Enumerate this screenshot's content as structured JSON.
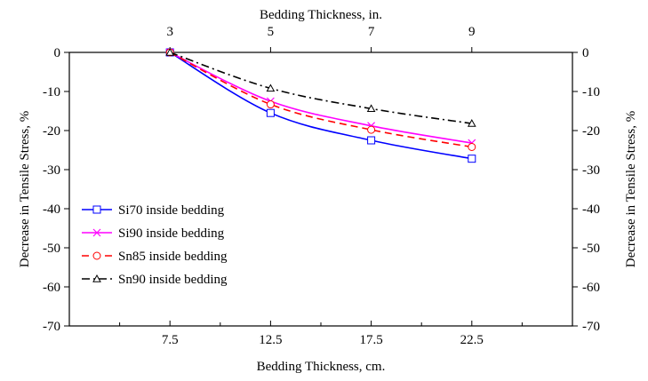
{
  "chart_data": {
    "type": "line",
    "top_xlabel": "Bedding Thickness, in.",
    "top_ticks": [
      "3",
      "5",
      "7",
      "9"
    ],
    "xlabel": "Bedding Thickness, cm.",
    "x_ticks": [
      "7.5",
      "12.5",
      "17.5",
      "22.5"
    ],
    "x": [
      7.5,
      12.5,
      17.5,
      22.5
    ],
    "xlim": [
      2.5,
      27.5
    ],
    "ylabel": "Decrease in Tensile Stress, %",
    "ylabel_right": "Decrease in Tensile Stress, %",
    "ylim": [
      -70,
      0
    ],
    "y_ticks": [
      "0",
      "-10",
      "-20",
      "-30",
      "-40",
      "-50",
      "-60",
      "-70"
    ],
    "grid": false,
    "legend_position": "left",
    "series": [
      {
        "name": "Si70 inside bedding",
        "values": [
          0,
          -15.5,
          -22.5,
          -27.2
        ],
        "color": "#0000ff",
        "dash": "solid",
        "marker": "square"
      },
      {
        "name": "Si90 inside bedding",
        "values": [
          0,
          -12.5,
          -18.8,
          -23.2
        ],
        "color": "#ff00ff",
        "dash": "solid",
        "marker": "x"
      },
      {
        "name": "Sn85 inside bedding",
        "values": [
          0,
          -13.3,
          -19.8,
          -24.2
        ],
        "color": "#ff0000",
        "dash": "dash",
        "marker": "circle"
      },
      {
        "name": "Sn90 inside bedding",
        "values": [
          0,
          -9.2,
          -14.4,
          -18.2
        ],
        "color": "#000000",
        "dash": "dashdot",
        "marker": "triangle"
      }
    ]
  }
}
